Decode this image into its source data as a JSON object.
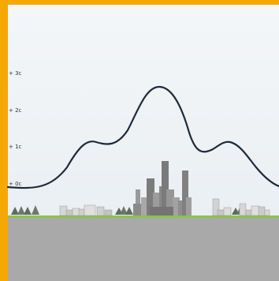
{
  "scale": {
    "ticks": [
      "+ 3c",
      "+ 2c",
      "+ 1c",
      "+ 0c"
    ]
  },
  "colors": {
    "frame": "#F5A800",
    "curve": "#1E2A3A",
    "grass": "#8BC34A",
    "ground": "#A9A9A9",
    "tree": "#5E6B5E",
    "building_dark": "#7C7C7C",
    "building_light": "#D8D8D8"
  },
  "scene": {
    "landscape": [
      "tree-cluster",
      "low-buildings",
      "city-towers",
      "low-buildings",
      "tree-cluster",
      "low-buildings"
    ]
  }
}
